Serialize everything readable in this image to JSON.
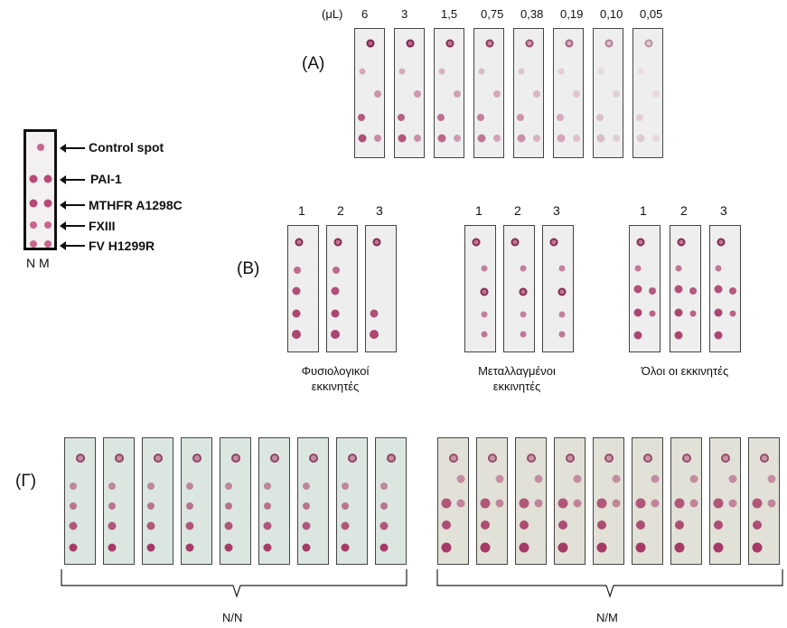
{
  "reference": {
    "labels": [
      "Control spot",
      "PAI-1",
      "MTHFR A1298C",
      "FXIII",
      "FV H1299R"
    ],
    "footer": "N M"
  },
  "panelA": {
    "label": "(A)",
    "unit": "(μL)",
    "volumes": [
      "6",
      "3",
      "1,5",
      "0,75",
      "0,38",
      "0,19",
      "0,10",
      "0,05"
    ]
  },
  "panelB": {
    "label": "(B)",
    "groups": [
      {
        "numbers": [
          "1",
          "2",
          "3"
        ],
        "caption_line1": "Φυσιολογικοί",
        "caption_line2": "εκκινητές"
      },
      {
        "numbers": [
          "1",
          "2",
          "3"
        ],
        "caption_line1": "Μεταλλαγμένοι",
        "caption_line2": "εκκινητές"
      },
      {
        "numbers": [
          "1",
          "2",
          "3"
        ],
        "caption_line1": "Όλοι οι εκκινητές",
        "caption_line2": ""
      }
    ]
  },
  "panelG": {
    "label": "(Γ)",
    "group_labels": [
      "N/N",
      "N/M"
    ]
  },
  "colors": {
    "strip_border": "#444444",
    "spot": "#b84a78",
    "strip_bg_NN": "#dce6e0",
    "strip_bg_NM": "#e2e1d8"
  }
}
